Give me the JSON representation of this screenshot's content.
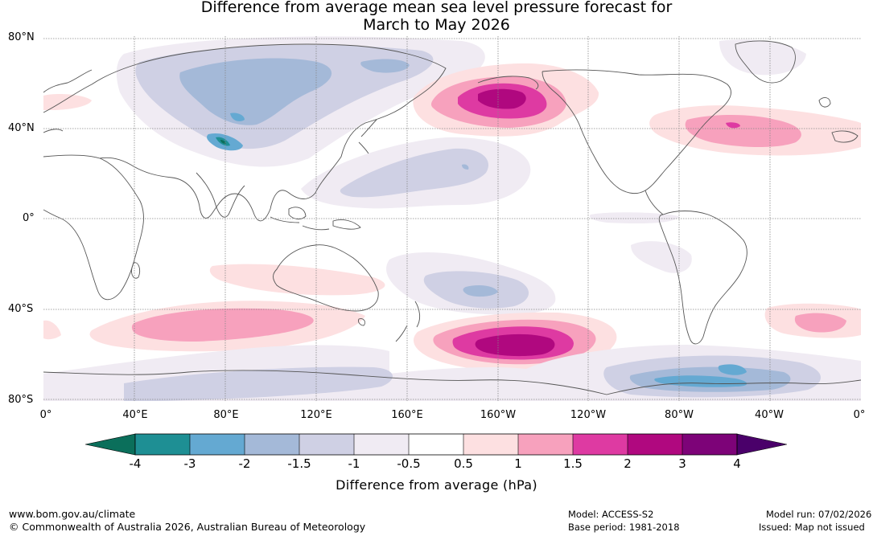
{
  "title": {
    "line1": "Difference from average mean sea level pressure forecast for",
    "line2": "March to May 2026"
  },
  "axes": {
    "lat_labels": [
      "80°N",
      "40°N",
      "0°",
      "40°S",
      "80°S"
    ],
    "lon_labels": [
      "0°",
      "40°E",
      "80°E",
      "120°E",
      "160°E",
      "160°W",
      "120°W",
      "80°W",
      "40°W",
      "0°"
    ]
  },
  "colorbar": {
    "tick_labels": [
      "-4",
      "-3",
      "-2",
      "-1.5",
      "-1",
      "-0.5",
      "0.5",
      "1",
      "1.5",
      "2",
      "3",
      "4"
    ],
    "label": "Difference from average (hPa)",
    "colors": {
      "extend_low": "#0b6f5b",
      "bins": [
        "#1e8f94",
        "#64a9d2",
        "#a4b9d8",
        "#cfd0e4",
        "#f0ebf3",
        "#ffffff",
        "#fde0e1",
        "#f7a1bd",
        "#de3aa2",
        "#b0087f",
        "#7d0378"
      ],
      "extend_high": "#4a006a"
    }
  },
  "map": {
    "colors": {
      "land_outline": "#555555",
      "grid": "#888888"
    }
  },
  "footer": {
    "website": "www.bom.gov.au/climate",
    "copyright": "© Commonwealth of Australia 2026, Australian Bureau of Meteorology",
    "model": "Model: ACCESS-S2",
    "base_period": "Base period: 1981-2018",
    "model_run": "Model run: 07/02/2026",
    "issued": "Issued: Map not issued"
  }
}
